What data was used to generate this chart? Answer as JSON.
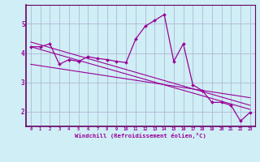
{
  "xlabel": "Windchill (Refroidissement éolien,°C)",
  "bg_color": "#d0eef5",
  "grid_color": "#b0b8d8",
  "line_color": "#990099",
  "spine_color": "#660066",
  "xlim": [
    -0.5,
    23.5
  ],
  "ylim": [
    1.5,
    5.65
  ],
  "xticks": [
    0,
    1,
    2,
    3,
    4,
    5,
    6,
    7,
    8,
    9,
    10,
    11,
    12,
    13,
    14,
    15,
    16,
    17,
    18,
    19,
    20,
    21,
    22,
    23
  ],
  "yticks": [
    2,
    3,
    4,
    5
  ],
  "data_x": [
    0,
    1,
    2,
    3,
    4,
    5,
    6,
    7,
    8,
    9,
    10,
    11,
    12,
    13,
    14,
    15,
    16,
    17,
    18,
    19,
    20,
    21,
    22,
    23
  ],
  "data_y": [
    4.22,
    4.22,
    4.32,
    3.62,
    3.78,
    3.72,
    3.88,
    3.82,
    3.78,
    3.72,
    3.68,
    4.48,
    4.92,
    5.12,
    5.32,
    3.72,
    4.32,
    2.92,
    2.72,
    2.32,
    2.32,
    2.22,
    1.68,
    1.98
  ],
  "trend1_x": [
    0,
    23
  ],
  "trend1_y": [
    4.22,
    2.08
  ],
  "trend2_x": [
    0,
    23
  ],
  "trend2_y": [
    4.38,
    2.22
  ],
  "trend3_x": [
    0,
    23
  ],
  "trend3_y": [
    3.62,
    2.48
  ]
}
